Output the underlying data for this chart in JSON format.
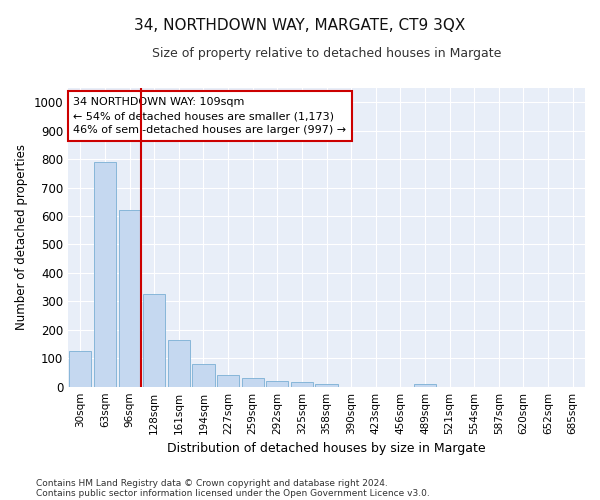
{
  "title": "34, NORTHDOWN WAY, MARGATE, CT9 3QX",
  "subtitle": "Size of property relative to detached houses in Margate",
  "xlabel": "Distribution of detached houses by size in Margate",
  "ylabel": "Number of detached properties",
  "bar_color": "#c5d8f0",
  "bar_edge_color": "#7aafd4",
  "bg_color": "#e8eef8",
  "grid_color": "#ffffff",
  "annotation_line_color": "#cc0000",
  "annotation_box_color": "#cc0000",
  "annotation_line1": "34 NORTHDOWN WAY: 109sqm",
  "annotation_line2": "← 54% of detached houses are smaller (1,173)",
  "annotation_line3": "46% of semi-detached houses are larger (997) →",
  "categories": [
    "30sqm",
    "63sqm",
    "96sqm",
    "128sqm",
    "161sqm",
    "194sqm",
    "227sqm",
    "259sqm",
    "292sqm",
    "325sqm",
    "358sqm",
    "390sqm",
    "423sqm",
    "456sqm",
    "489sqm",
    "521sqm",
    "554sqm",
    "587sqm",
    "620sqm",
    "652sqm",
    "685sqm"
  ],
  "values": [
    125,
    790,
    620,
    325,
    165,
    80,
    40,
    30,
    20,
    15,
    10,
    0,
    0,
    0,
    10,
    0,
    0,
    0,
    0,
    0,
    0
  ],
  "ylim": [
    0,
    1050
  ],
  "yticks": [
    0,
    100,
    200,
    300,
    400,
    500,
    600,
    700,
    800,
    900,
    1000
  ],
  "footnote1": "Contains HM Land Registry data © Crown copyright and database right 2024.",
  "footnote2": "Contains public sector information licensed under the Open Government Licence v3.0."
}
